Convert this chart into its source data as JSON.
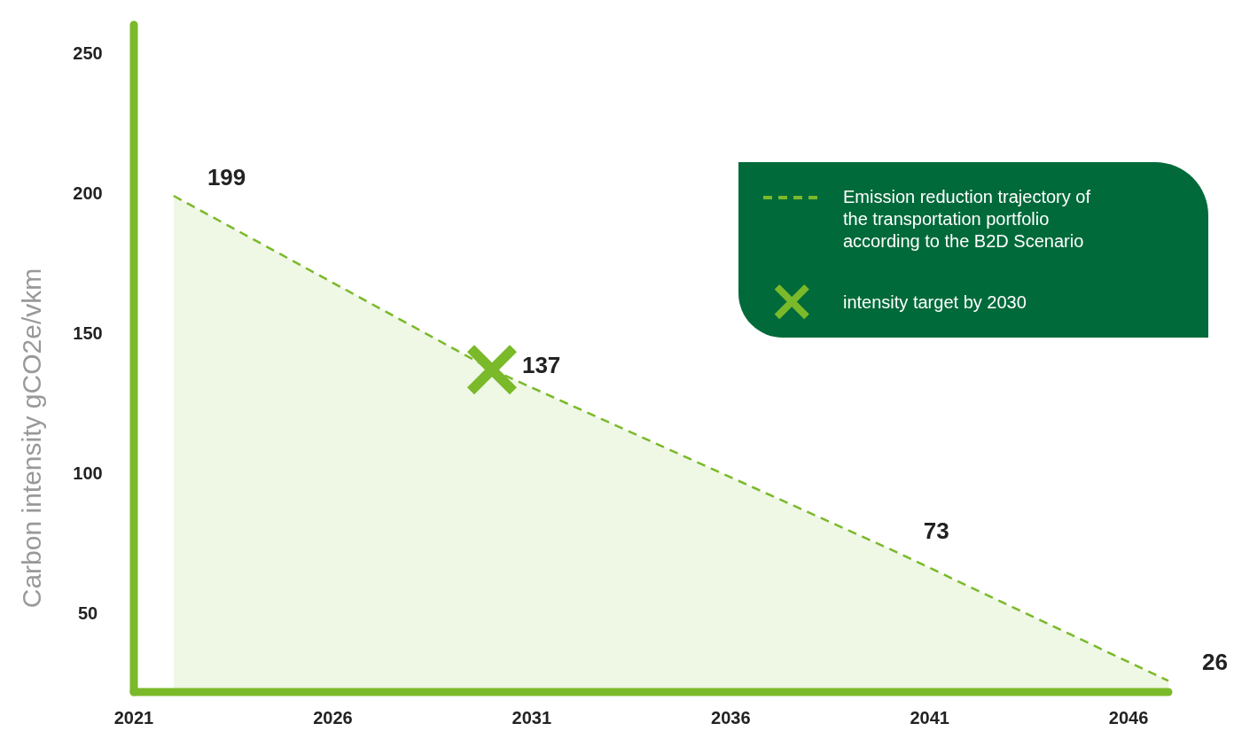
{
  "chart_data": {
    "type": "area",
    "ylabel": "Carbon intensity  gCO2e/vkm",
    "xlim": [
      2021,
      2047
    ],
    "xticks": [
      2021,
      2026,
      2031,
      2036,
      2041,
      2046
    ],
    "ylim": [
      22,
      260
    ],
    "yticks": [
      50,
      100,
      150,
      200,
      250
    ],
    "legend": "top right",
    "series": [
      {
        "name": "Emission reduction trajectory of the transportation portfolio according to the B2D Scenario",
        "color": "#7ab929",
        "line_style": "dashed",
        "x": [
          2022,
          2030,
          2040,
          2047
        ],
        "values": [
          199,
          137,
          73,
          26
        ],
        "value_labels": [
          "199",
          null,
          "73",
          "26"
        ]
      },
      {
        "name": "intensity target by 2030",
        "type": "scatter",
        "marker": "cross",
        "color": "#7ab929",
        "x": [
          2030
        ],
        "values": [
          137
        ],
        "value_labels": [
          "137"
        ]
      }
    ]
  }
}
